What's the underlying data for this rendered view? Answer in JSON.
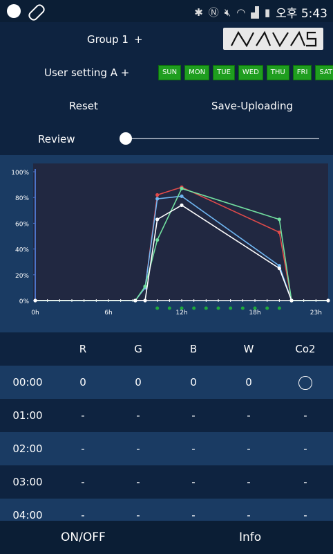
{
  "status_bar": {
    "left_icons": [
      "circle-icon",
      "pill-icon"
    ],
    "right_icons": [
      "bluetooth-icon",
      "nfc-icon",
      "mute-icon",
      "wifi-icon",
      "signal-icon",
      "battery-icon"
    ],
    "time": "오후 5:43"
  },
  "header": {
    "group_label": "Group 1",
    "group_plus": "+",
    "logo_text": "NAVAS",
    "user_setting_label": "User setting A +",
    "days": [
      "SUN",
      "MON",
      "TUE",
      "WED",
      "THU",
      "FRI",
      "SAT"
    ],
    "day_color": "#1f9e1f",
    "reset_label": "Reset",
    "save_label": "Save-Uploading",
    "review_label": "Review",
    "review_slider_value": 0
  },
  "chart_data": {
    "type": "line",
    "x_ticks": [
      "0h",
      "6h",
      "12h",
      "18h",
      "23h"
    ],
    "y_ticks": [
      "100%",
      "80%",
      "60%",
      "40%",
      "20%",
      "0%"
    ],
    "xlim": [
      0,
      24
    ],
    "ylim": [
      0,
      100
    ],
    "series": [
      {
        "color": "#e04a4a",
        "points": [
          [
            0,
            0
          ],
          [
            8.2,
            0
          ],
          [
            9,
            10
          ],
          [
            10,
            82
          ],
          [
            12,
            88
          ],
          [
            20,
            53
          ],
          [
            21,
            0
          ],
          [
            24,
            0
          ]
        ]
      },
      {
        "color": "#6fb6f2",
        "points": [
          [
            0,
            0
          ],
          [
            8.2,
            0
          ],
          [
            9,
            10
          ],
          [
            10,
            79
          ],
          [
            12,
            81
          ],
          [
            20,
            27
          ],
          [
            21,
            0
          ],
          [
            24,
            0
          ]
        ]
      },
      {
        "color": "#72e0a0",
        "points": [
          [
            0,
            0
          ],
          [
            8.2,
            0
          ],
          [
            9,
            11
          ],
          [
            10,
            47
          ],
          [
            12,
            87
          ],
          [
            20,
            63
          ],
          [
            21,
            0
          ],
          [
            24,
            0
          ]
        ]
      },
      {
        "color": "#ffffff",
        "points": [
          [
            0,
            0
          ],
          [
            8.2,
            0
          ],
          [
            9,
            0
          ],
          [
            10,
            63
          ],
          [
            12,
            74
          ],
          [
            20,
            25
          ],
          [
            21,
            0
          ],
          [
            24,
            0
          ]
        ]
      }
    ],
    "timeline_markers": [
      10,
      11,
      12,
      13,
      14,
      15,
      16,
      17,
      18,
      19,
      20
    ],
    "marker_color": "#1faa3c"
  },
  "table": {
    "headers": [
      "",
      "R",
      "G",
      "B",
      "W",
      "Co2"
    ],
    "rows": [
      {
        "time": "00:00",
        "r": "0",
        "g": "0",
        "b": "0",
        "w": "0",
        "co2": "circle"
      },
      {
        "time": "01:00",
        "r": "-",
        "g": "-",
        "b": "-",
        "w": "-",
        "co2": "-"
      },
      {
        "time": "02:00",
        "r": "-",
        "g": "-",
        "b": "-",
        "w": "-",
        "co2": "-"
      },
      {
        "time": "03:00",
        "r": "-",
        "g": "-",
        "b": "-",
        "w": "-",
        "co2": "-"
      },
      {
        "time": "04:00",
        "r": "-",
        "g": "-",
        "b": "-",
        "w": "-",
        "co2": "-"
      }
    ]
  },
  "bottom_bar": {
    "onoff_label": "ON/OFF",
    "info_label": "Info"
  }
}
